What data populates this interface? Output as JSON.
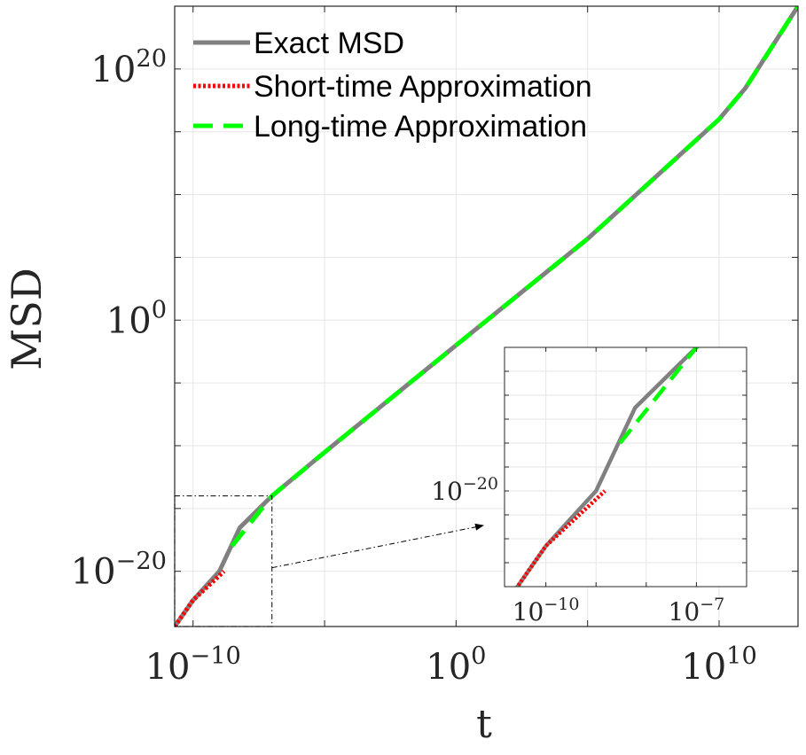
{
  "chart_data": {
    "type": "line",
    "xscale": "log",
    "yscale": "log",
    "xlabel": "t",
    "ylabel": "MSD",
    "xlim": [
      2e-11,
      10000000000000.0
    ],
    "ylim": [
      4e-25,
      1e+25
    ],
    "x_ticks": [
      {
        "value": 1e-10,
        "mant": "10",
        "exp": "−10"
      },
      {
        "value": 1,
        "mant": "10",
        "exp": "0"
      },
      {
        "value": 10000000000.0,
        "mant": "10",
        "exp": "10"
      }
    ],
    "y_ticks": [
      {
        "value": 1e-20,
        "mant": "10",
        "exp": "−20"
      },
      {
        "value": 1,
        "mant": "10",
        "exp": "0"
      },
      {
        "value": 1e+20,
        "mant": "10",
        "exp": "20"
      }
    ],
    "grid": true,
    "legend_position": "top-left",
    "series": [
      {
        "name": "Exact MSD",
        "color": "#808080",
        "style": "solid",
        "points": [
          [
            2e-11,
            4e-25
          ],
          [
            1e-10,
            5e-23
          ],
          [
            1e-09,
            1e-20
          ],
          [
            6e-09,
            3e-17
          ],
          [
            1e-07,
            1e-14
          ],
          [
            1e-05,
            3e-11
          ],
          [
            1,
            0.01
          ],
          [
            100000.0,
            3000000.0
          ],
          [
            10000000000.0,
            1e+16
          ],
          [
            100000000000.0,
            3e+18
          ],
          [
            10000000000000.0,
            1e+25
          ]
        ]
      },
      {
        "name": "Short-time Approximation",
        "color": "#ff0000",
        "style": "dotted",
        "points": [
          [
            2e-11,
            4e-25
          ],
          [
            1e-10,
            5e-23
          ],
          [
            1.5e-09,
            1e-20
          ]
        ]
      },
      {
        "name": "Long-time Approximation",
        "color": "#00ff00",
        "style": "dashed",
        "points": [
          [
            3e-09,
            1e-18
          ],
          [
            1e-07,
            1e-14
          ],
          [
            1e-05,
            3e-11
          ],
          [
            1,
            0.01
          ],
          [
            100000.0,
            3000000.0
          ],
          [
            10000000000.0,
            1e+16
          ],
          [
            100000000000.0,
            3e+18
          ],
          [
            10000000000000.0,
            1e+25
          ]
        ]
      }
    ],
    "inset": {
      "xlim": [
        1.5e-11,
        1e-06
      ],
      "ylim": [
        1e-24,
        1e-14
      ],
      "x_ticks": [
        {
          "value": 1e-10,
          "mant": "10",
          "exp": "−10"
        },
        {
          "value": 1e-07,
          "mant": "10",
          "exp": "−7"
        }
      ],
      "y_ticks": [
        {
          "value": 1e-20,
          "mant": "10",
          "exp": "−20"
        }
      ],
      "zoom_region": {
        "x": [
          2e-11,
          1e-07
        ],
        "y": [
          4e-25,
          1e-14
        ]
      }
    }
  }
}
